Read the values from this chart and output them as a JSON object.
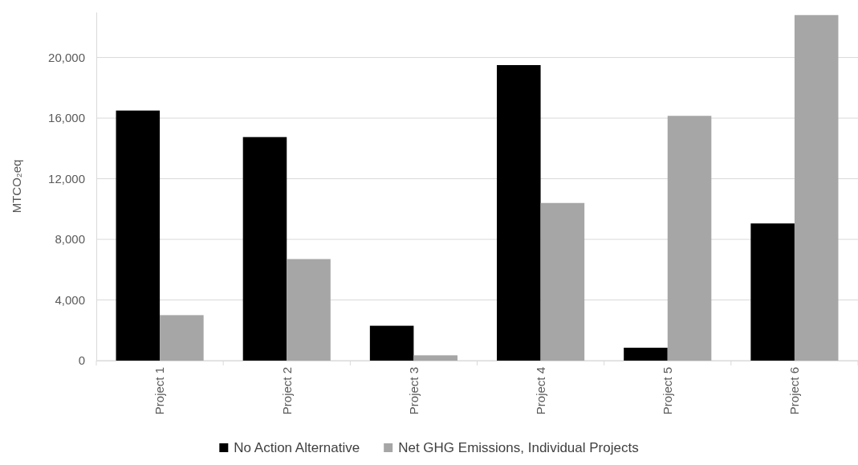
{
  "chart_data": {
    "type": "bar",
    "ylabel": "MTCO₂eq",
    "categories": [
      "Project 1",
      "Project 2",
      "Project 3",
      "Project 4",
      "Project 5",
      "Project 6"
    ],
    "series": [
      {
        "name": "No Action Alternative",
        "color": "#000000",
        "values": [
          16500,
          14750,
          2300,
          19500,
          850,
          9050
        ]
      },
      {
        "name": "Net GHG Emissions, Individual Projects",
        "color": "#a6a6a6",
        "values": [
          3000,
          6700,
          350,
          10400,
          16150,
          22800
        ]
      }
    ],
    "ylim": [
      0,
      23000
    ],
    "yticks": [
      0,
      {
        "value": 4000,
        "label": "4,000"
      },
      {
        "value": 8000,
        "label": "8,000"
      },
      {
        "value": 12000,
        "label": "12,000"
      },
      {
        "value": 16000,
        "label": "16,000"
      },
      {
        "value": 20000,
        "label": "20,000"
      }
    ],
    "grid": "y",
    "legend": "bottom"
  }
}
